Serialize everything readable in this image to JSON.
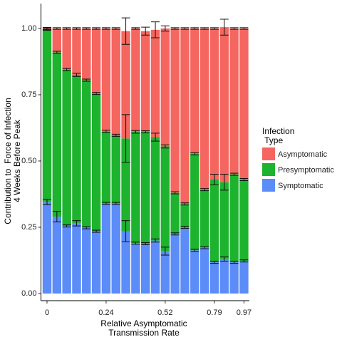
{
  "chart_data": {
    "type": "stacked_bar",
    "y_label": [
      "Contribution to  Force of Infection",
      "4 Weeks Before Peak"
    ],
    "x_label": [
      "Relative Asymptomatic",
      "Transmission Rate"
    ],
    "legend_title": [
      "Infection",
      " Type"
    ],
    "categories": [
      "0",
      null,
      null,
      null,
      null,
      null,
      "0.24",
      null,
      null,
      null,
      null,
      null,
      "0.52",
      null,
      null,
      null,
      null,
      "0.79",
      null,
      null,
      "0.97"
    ],
    "series": [
      {
        "name": "Symptomatic",
        "color": "#5b8cf8",
        "values": [
          0.345,
          0.29,
          0.255,
          0.265,
          0.248,
          0.235,
          0.34,
          0.34,
          0.235,
          0.19,
          0.188,
          0.2,
          0.16,
          0.225,
          0.25,
          0.163,
          0.173,
          0.118,
          0.13,
          0.118,
          0.123
        ],
        "errors": [
          0.01,
          0.02,
          0.004,
          0.01,
          0.004,
          0.004,
          0.004,
          0.004,
          0.04,
          0.004,
          0.004,
          0.006,
          0.015,
          0.004,
          0.004,
          0.004,
          0.004,
          0.004,
          0.008,
          0.004,
          0.004
        ]
      },
      {
        "name": "Presymptomatic",
        "color": "#1db32e",
        "values": [
          0.652,
          0.62,
          0.59,
          0.56,
          0.557,
          0.52,
          0.272,
          0.257,
          0.35,
          0.42,
          0.422,
          0.39,
          0.395,
          0.155,
          0.088,
          0.364,
          0.219,
          0.312,
          0.29,
          0.332,
          0.307
        ],
        "errors": [
          0.004,
          0.004,
          0.004,
          0.006,
          0.004,
          0.004,
          0.004,
          0.004,
          0.09,
          0.005,
          0.004,
          0.015,
          0.006,
          0.004,
          0.004,
          0.004,
          0.004,
          0.02,
          0.03,
          0.004,
          0.004
        ]
      },
      {
        "name": "Asymptomatic",
        "color": "#f4665f",
        "values": [
          0.003,
          0.09,
          0.155,
          0.175,
          0.195,
          0.245,
          0.388,
          0.403,
          0.405,
          0.39,
          0.38,
          0.405,
          0.445,
          0.62,
          0.662,
          0.473,
          0.608,
          0.57,
          0.585,
          0.55,
          0.57
        ],
        "errors": [
          0.004,
          0.003,
          0.003,
          0.003,
          0.003,
          0.003,
          0.003,
          0.003,
          0.05,
          0.003,
          0.015,
          0.03,
          0.01,
          0.003,
          0.003,
          0.003,
          0.003,
          0.003,
          0.03,
          0.003,
          0.003
        ]
      }
    ],
    "ylim": [
      -0.027,
      1.094
    ],
    "yticks": [
      {
        "value": 0,
        "label": "0.00"
      },
      {
        "value": 0.25,
        "label": "0.25"
      },
      {
        "value": 0.5,
        "label": "0.50"
      },
      {
        "value": 0.75,
        "label": "0.75"
      },
      {
        "value": 1,
        "label": "1.00"
      }
    ]
  }
}
